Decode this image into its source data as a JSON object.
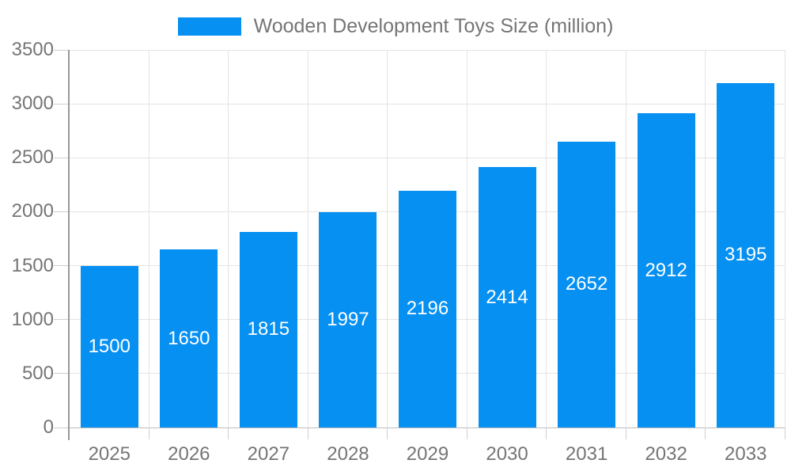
{
  "legend": {
    "items": [
      {
        "label": "Wooden Development Toys Size (million)"
      }
    ]
  },
  "colors": {
    "bar": "#0590F2",
    "bar_label_text": "#ffffff",
    "y_axis_line": "#999999",
    "x_axis_line": "#bdbdbd",
    "gridline": "#e4e4e4",
    "tick": "#cfcfcf",
    "tick_label_text": "#757575",
    "legend_text": "#757575",
    "background": "#ffffff"
  },
  "chart_data": {
    "type": "bar",
    "title": "Wooden Development Toys Size (million)",
    "series": [
      {
        "name": "Wooden Development Toys Size (million)",
        "values": [
          1500,
          1650,
          1815,
          1997,
          2196,
          2414,
          2652,
          2912,
          3195
        ]
      }
    ],
    "categories": [
      "2025",
      "2026",
      "2027",
      "2028",
      "2029",
      "2030",
      "2031",
      "2032",
      "2033"
    ],
    "values": [
      1500,
      1650,
      1815,
      1997,
      2196,
      2414,
      2652,
      2912,
      3195
    ],
    "bar_value_labels": [
      "1500",
      "1650",
      "1815",
      "1997",
      "2196",
      "2414",
      "2652",
      "2912",
      "3195"
    ],
    "xlabel": "",
    "ylabel": "",
    "ylim": [
      0,
      3500
    ],
    "ytick_step": 500,
    "yticks": [
      0,
      500,
      1000,
      1500,
      2000,
      2500,
      3000,
      3500
    ],
    "grid": true,
    "legend_position": "top"
  }
}
